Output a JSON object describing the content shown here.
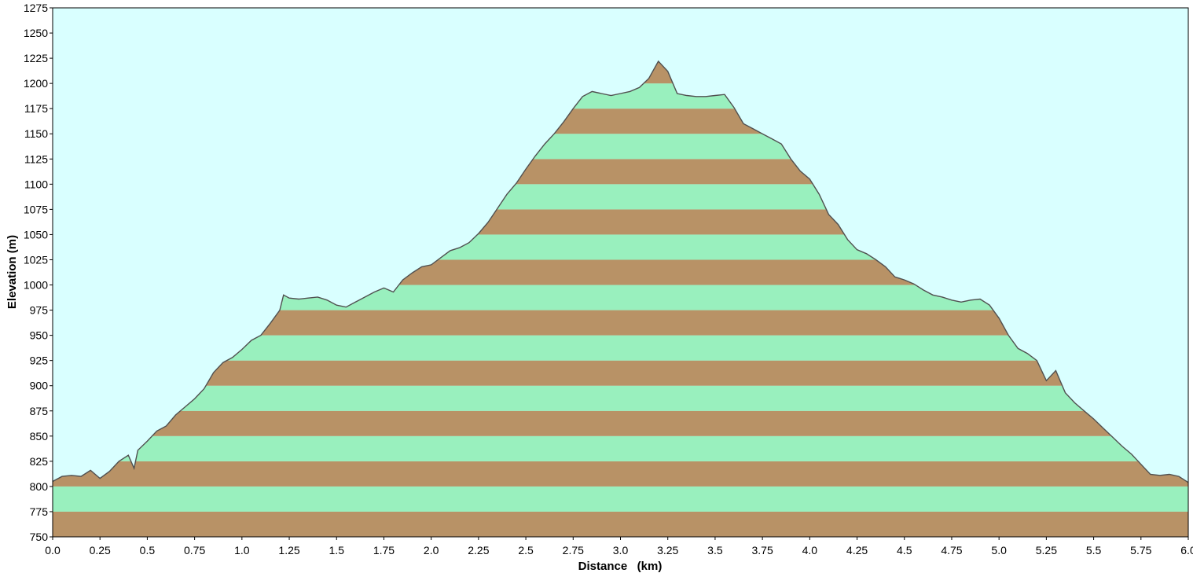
{
  "chart_data": {
    "type": "area",
    "xlabel": "Distance   (km)",
    "ylabel": "Elevation (m)",
    "xlim": [
      0,
      6
    ],
    "ylim": [
      750,
      1275
    ],
    "x_ticks": [
      "0.0",
      "0.25",
      "0.5",
      "0.75",
      "1.0",
      "1.25",
      "1.5",
      "1.75",
      "2.0",
      "2.25",
      "2.5",
      "2.75",
      "3.0",
      "3.25",
      "3.5",
      "3.75",
      "4.0",
      "4.25",
      "4.5",
      "4.75",
      "5.0",
      "5.25",
      "5.5",
      "5.75",
      "6.0"
    ],
    "y_ticks": [
      "750",
      "775",
      "800",
      "825",
      "850",
      "875",
      "900",
      "925",
      "950",
      "975",
      "1000",
      "1025",
      "1050",
      "1075",
      "1100",
      "1125",
      "1150",
      "1175",
      "1200",
      "1225",
      "1250",
      "1275"
    ],
    "band_size": 25,
    "grid": false,
    "legend": "none",
    "colors": {
      "background": "#d9ffff",
      "band_light": "#99f0be",
      "band_dark": "#b89266",
      "profile_line": "#505050"
    },
    "series": [
      {
        "x": [
          0,
          0.05,
          0.1,
          0.15,
          0.2,
          0.25,
          0.3,
          0.35,
          0.4,
          0.43,
          0.45,
          0.5,
          0.55,
          0.6,
          0.65,
          0.7,
          0.75,
          0.8,
          0.85,
          0.9,
          0.95,
          1.0,
          1.05,
          1.1,
          1.15,
          1.2,
          1.22,
          1.25,
          1.3,
          1.35,
          1.4,
          1.45,
          1.5,
          1.55,
          1.6,
          1.65,
          1.7,
          1.75,
          1.8,
          1.85,
          1.9,
          1.95,
          2.0,
          2.05,
          2.1,
          2.15,
          2.2,
          2.25,
          2.3,
          2.35,
          2.4,
          2.45,
          2.5,
          2.55,
          2.6,
          2.65,
          2.7,
          2.75,
          2.8,
          2.85,
          2.9,
          2.95,
          3.0,
          3.05,
          3.1,
          3.15,
          3.2,
          3.25,
          3.3,
          3.35,
          3.4,
          3.45,
          3.5,
          3.55,
          3.6,
          3.65,
          3.7,
          3.75,
          3.8,
          3.85,
          3.9,
          3.95,
          4.0,
          4.05,
          4.1,
          4.15,
          4.2,
          4.25,
          4.3,
          4.35,
          4.4,
          4.45,
          4.5,
          4.55,
          4.6,
          4.65,
          4.7,
          4.75,
          4.8,
          4.85,
          4.9,
          4.95,
          5.0,
          5.05,
          5.1,
          5.15,
          5.2,
          5.25,
          5.3,
          5.35,
          5.4,
          5.45,
          5.5,
          5.55,
          5.6,
          5.65,
          5.7,
          5.75,
          5.8,
          5.85,
          5.9,
          5.95,
          6.0
        ],
        "y": [
          805,
          810,
          811,
          810,
          816,
          808,
          815,
          825,
          831,
          818,
          836,
          845,
          855,
          860,
          871,
          879,
          887,
          897,
          913,
          923,
          928,
          936,
          945,
          950,
          962,
          975,
          990,
          987,
          986,
          987,
          988,
          985,
          980,
          978,
          983,
          988,
          993,
          997,
          993,
          1005,
          1012,
          1018,
          1020,
          1027,
          1034,
          1037,
          1042,
          1051,
          1062,
          1076,
          1090,
          1101,
          1115,
          1128,
          1140,
          1150,
          1162,
          1175,
          1187,
          1192,
          1190,
          1188,
          1190,
          1192,
          1196,
          1205,
          1222,
          1212,
          1190,
          1188,
          1187,
          1187,
          1188,
          1189,
          1176,
          1160,
          1155,
          1150,
          1145,
          1140,
          1125,
          1113,
          1105,
          1090,
          1070,
          1060,
          1045,
          1035,
          1031,
          1025,
          1018,
          1008,
          1005,
          1001,
          995,
          990,
          988,
          985,
          983,
          985,
          986,
          980,
          967,
          950,
          937,
          932,
          925,
          905,
          915,
          893,
          883,
          875,
          867,
          858,
          849,
          840,
          832,
          822,
          812,
          811,
          812,
          810,
          804
        ]
      }
    ]
  }
}
